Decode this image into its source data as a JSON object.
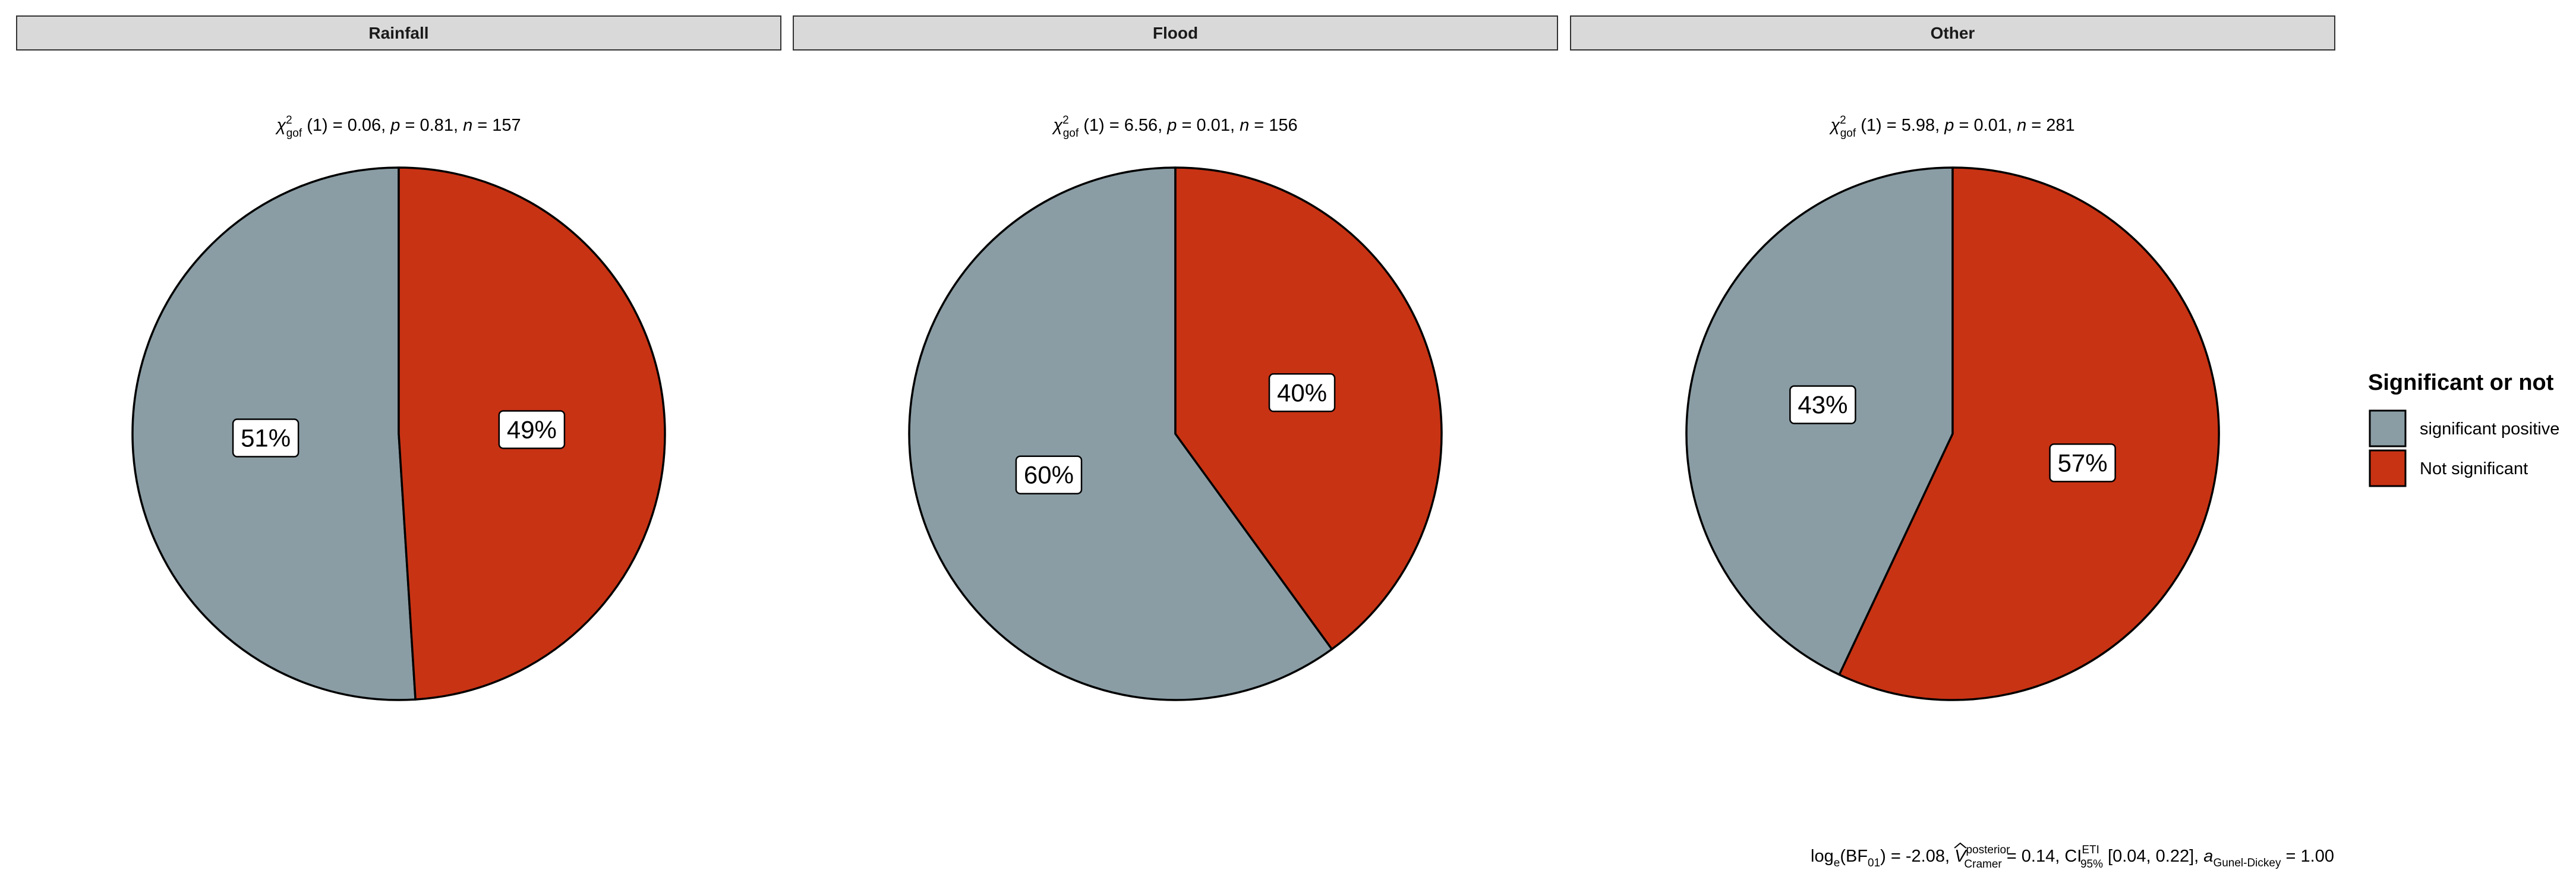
{
  "chart_data": {
    "type": "pie",
    "legend": {
      "title": "Significant or not",
      "placement": "right",
      "entries": [
        {
          "label": "significant positive",
          "color": "#8A9DA5"
        },
        {
          "label": "Not significant",
          "color": "#C83314"
        }
      ]
    },
    "panels": [
      {
        "strip_label": "Rainfall",
        "subtitle": {
          "chi_value": "0.06",
          "df": "1",
          "p": "0.81",
          "n": "157"
        },
        "slices": [
          {
            "category": "significant positive",
            "value": 51,
            "label": "51%"
          },
          {
            "category": "Not significant",
            "value": 49,
            "label": "49%"
          }
        ]
      },
      {
        "strip_label": "Flood",
        "subtitle": {
          "chi_value": "6.56",
          "df": "1",
          "p": "0.01",
          "n": "156"
        },
        "slices": [
          {
            "category": "significant positive",
            "value": 60,
            "label": "60%"
          },
          {
            "category": "Not significant",
            "value": 40,
            "label": "40%"
          }
        ]
      },
      {
        "strip_label": "Other",
        "subtitle": {
          "chi_value": "5.98",
          "df": "1",
          "p": "0.01",
          "n": "281"
        },
        "slices": [
          {
            "category": "significant positive",
            "value": 43,
            "label": "43%"
          },
          {
            "category": "Not significant",
            "value": 57,
            "label": "57%"
          }
        ]
      }
    ],
    "caption": {
      "log_bf": "-2.08",
      "v_cramer": "0.14",
      "ci_low": "0.04",
      "ci_high": "0.22",
      "a_gunel_dickey": "1.00"
    }
  }
}
